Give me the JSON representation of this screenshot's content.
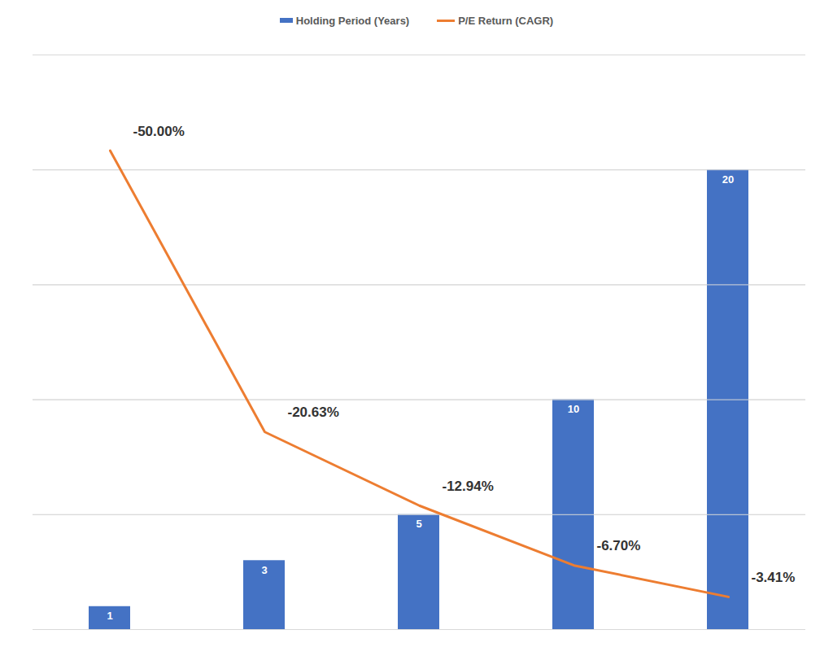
{
  "chart_data": {
    "type": "bar",
    "categories": [
      null,
      null,
      null,
      null,
      null
    ],
    "series": [
      {
        "name": "Holding Period (Years)",
        "type": "bar",
        "color": "#4472C4",
        "values": [
          1,
          3,
          5,
          10,
          20
        ]
      },
      {
        "name": "P/E Return (CAGR)",
        "type": "line",
        "color": "#ED7D31",
        "axis": "y2",
        "values": [
          -50,
          -20.63,
          -12.94,
          -6.7,
          -3.41
        ],
        "value_labels": [
          "-50.00%",
          "-20.63%",
          "-12.94%",
          "-6.70%",
          "-3.41%"
        ]
      }
    ],
    "ylim": [
      0,
      25
    ],
    "yticks": [
      0,
      5,
      10,
      15,
      20,
      25
    ],
    "y2lim": [
      0,
      -60
    ],
    "y2ticks": [
      0,
      -12,
      -24,
      -36,
      -48,
      -60
    ],
    "grid": true,
    "legend": "top",
    "data_labels": true,
    "tick_labels": false
  }
}
